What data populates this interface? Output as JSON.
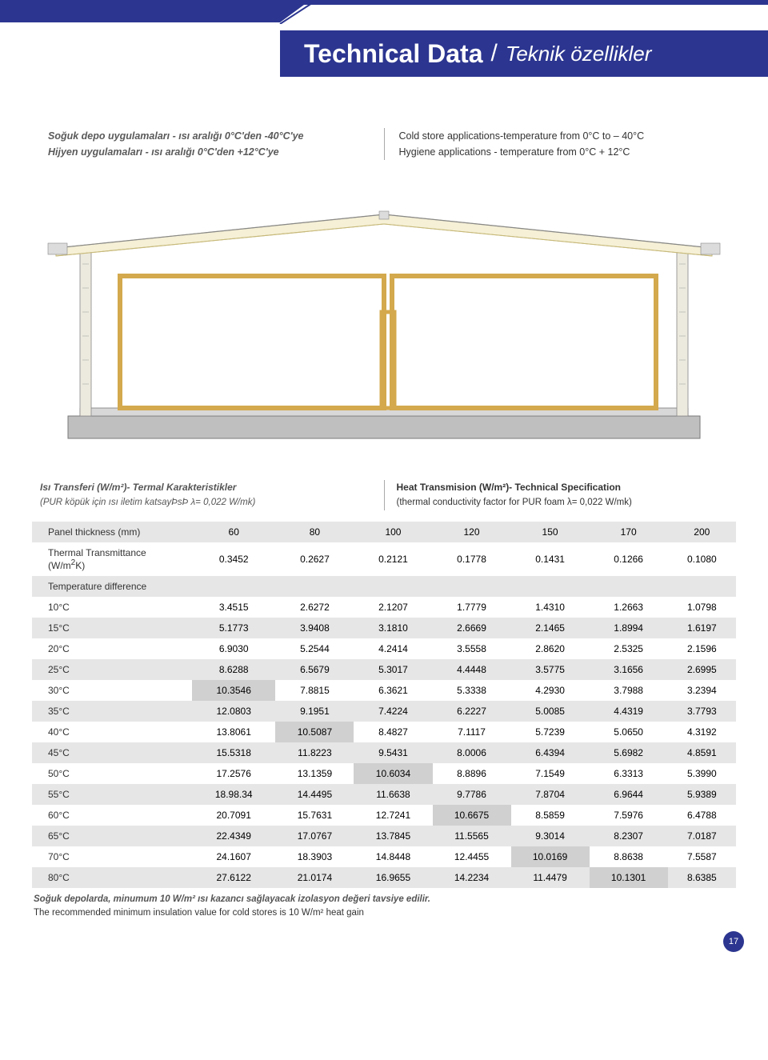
{
  "header": {
    "title_en": "Technical Data",
    "title_tr": "Teknik özellikler"
  },
  "intro": {
    "left_line1": "Soğuk depo uygulamaları - ısı aralığı 0°C'den -40°C'ye",
    "left_line2": "Hijyen uygulamaları - ısı aralığı 0°C'den +12°C'ye",
    "right_line1": "Cold store applications-temperature from 0°C to – 40°C",
    "right_line2": "Hygiene applications - temperature from 0°C + 12°C"
  },
  "diagram": {
    "type": "cross-section",
    "outline_color": "#7a7a7a",
    "roof_fill": "#f5f0d6",
    "roof_stroke": "#c7b97a",
    "frame_stroke": "#d4a94d",
    "base_fill": "#bfbfbf",
    "wall_stroke": "#888888"
  },
  "spec_headers": {
    "left_title": "Isı Transferi (W/m²)- Termal Karakteristikler",
    "left_sub": "(PUR köpük için ısı iletim katsayÞsÞ λ= 0,022 W/mk)",
    "right_title": "Heat Transmision (W/m²)- Technical Specification",
    "right_sub": "(thermal conductivity factor for PUR foam λ= 0,022 W/mk)"
  },
  "table": {
    "type": "table",
    "stripe_bg": "#e6e6e6",
    "highlight_bg": "#d0d0d0",
    "header_row_label": "Panel thickness (mm)",
    "thicknesses": [
      "60",
      "80",
      "100",
      "120",
      "150",
      "170",
      "200"
    ],
    "transmit_label": "Thermal Transmittance (W/m²K)",
    "transmit_values": [
      "0.3452",
      "0.2627",
      "0.2121",
      "0.1778",
      "0.1431",
      "0.1266",
      "0.1080"
    ],
    "tempdiff_label": "Temperature difference",
    "rows": [
      {
        "temp": "10°C",
        "v": [
          "3.4515",
          "2.6272",
          "2.1207",
          "1.7779",
          "1.4310",
          "1.2663",
          "1.0798"
        ],
        "hl": []
      },
      {
        "temp": "15°C",
        "v": [
          "5.1773",
          "3.9408",
          "3.1810",
          "2.6669",
          "2.1465",
          "1.8994",
          "1.6197"
        ],
        "hl": []
      },
      {
        "temp": "20°C",
        "v": [
          "6.9030",
          "5.2544",
          "4.2414",
          "3.5558",
          "2.8620",
          "2.5325",
          "2.1596"
        ],
        "hl": []
      },
      {
        "temp": "25°C",
        "v": [
          "8.6288",
          "6.5679",
          "5.3017",
          "4.4448",
          "3.5775",
          "3.1656",
          "2.6995"
        ],
        "hl": []
      },
      {
        "temp": "30°C",
        "v": [
          "10.3546",
          "7.8815",
          "6.3621",
          "5.3338",
          "4.2930",
          "3.7988",
          "3.2394"
        ],
        "hl": [
          0
        ]
      },
      {
        "temp": "35°C",
        "v": [
          "12.0803",
          "9.1951",
          "7.4224",
          "6.2227",
          "5.0085",
          "4.4319",
          "3.7793"
        ],
        "hl": []
      },
      {
        "temp": "40°C",
        "v": [
          "13.8061",
          "10.5087",
          "8.4827",
          "7.1117",
          "5.7239",
          "5.0650",
          "4.3192"
        ],
        "hl": [
          1
        ]
      },
      {
        "temp": "45°C",
        "v": [
          "15.5318",
          "11.8223",
          "9.5431",
          "8.0006",
          "6.4394",
          "5.6982",
          "4.8591"
        ],
        "hl": []
      },
      {
        "temp": "50°C",
        "v": [
          "17.2576",
          "13.1359",
          "10.6034",
          "8.8896",
          "7.1549",
          "6.3313",
          "5.3990"
        ],
        "hl": [
          2
        ]
      },
      {
        "temp": "55°C",
        "v": [
          "18.98.34",
          "14.4495",
          "11.6638",
          "9.7786",
          "7.8704",
          "6.9644",
          "5.9389"
        ],
        "hl": []
      },
      {
        "temp": "60°C",
        "v": [
          "20.7091",
          "15.7631",
          "12.7241",
          "10.6675",
          "8.5859",
          "7.5976",
          "6.4788"
        ],
        "hl": [
          3
        ]
      },
      {
        "temp": "65°C",
        "v": [
          "22.4349",
          "17.0767",
          "13.7845",
          "11.5565",
          "9.3014",
          "8.2307",
          "7.0187"
        ],
        "hl": []
      },
      {
        "temp": "70°C",
        "v": [
          "24.1607",
          "18.3903",
          "14.8448",
          "12.4455",
          "10.0169",
          "8.8638",
          "7.5587"
        ],
        "hl": [
          4
        ]
      },
      {
        "temp": "80°C",
        "v": [
          "27.6122",
          "21.0174",
          "16.9655",
          "14.2234",
          "11.4479",
          "10.1301",
          "8.6385"
        ],
        "hl": [
          5
        ]
      }
    ]
  },
  "footnote": {
    "tr": "Soğuk depolarda, minumum 10 W/m² ısı kazancı sağlayacak izolasyon değeri tavsiye edilir.",
    "en": "The recommended minimum insulation value for cold stores is 10 W/m² heat gain"
  },
  "page_number": "17"
}
